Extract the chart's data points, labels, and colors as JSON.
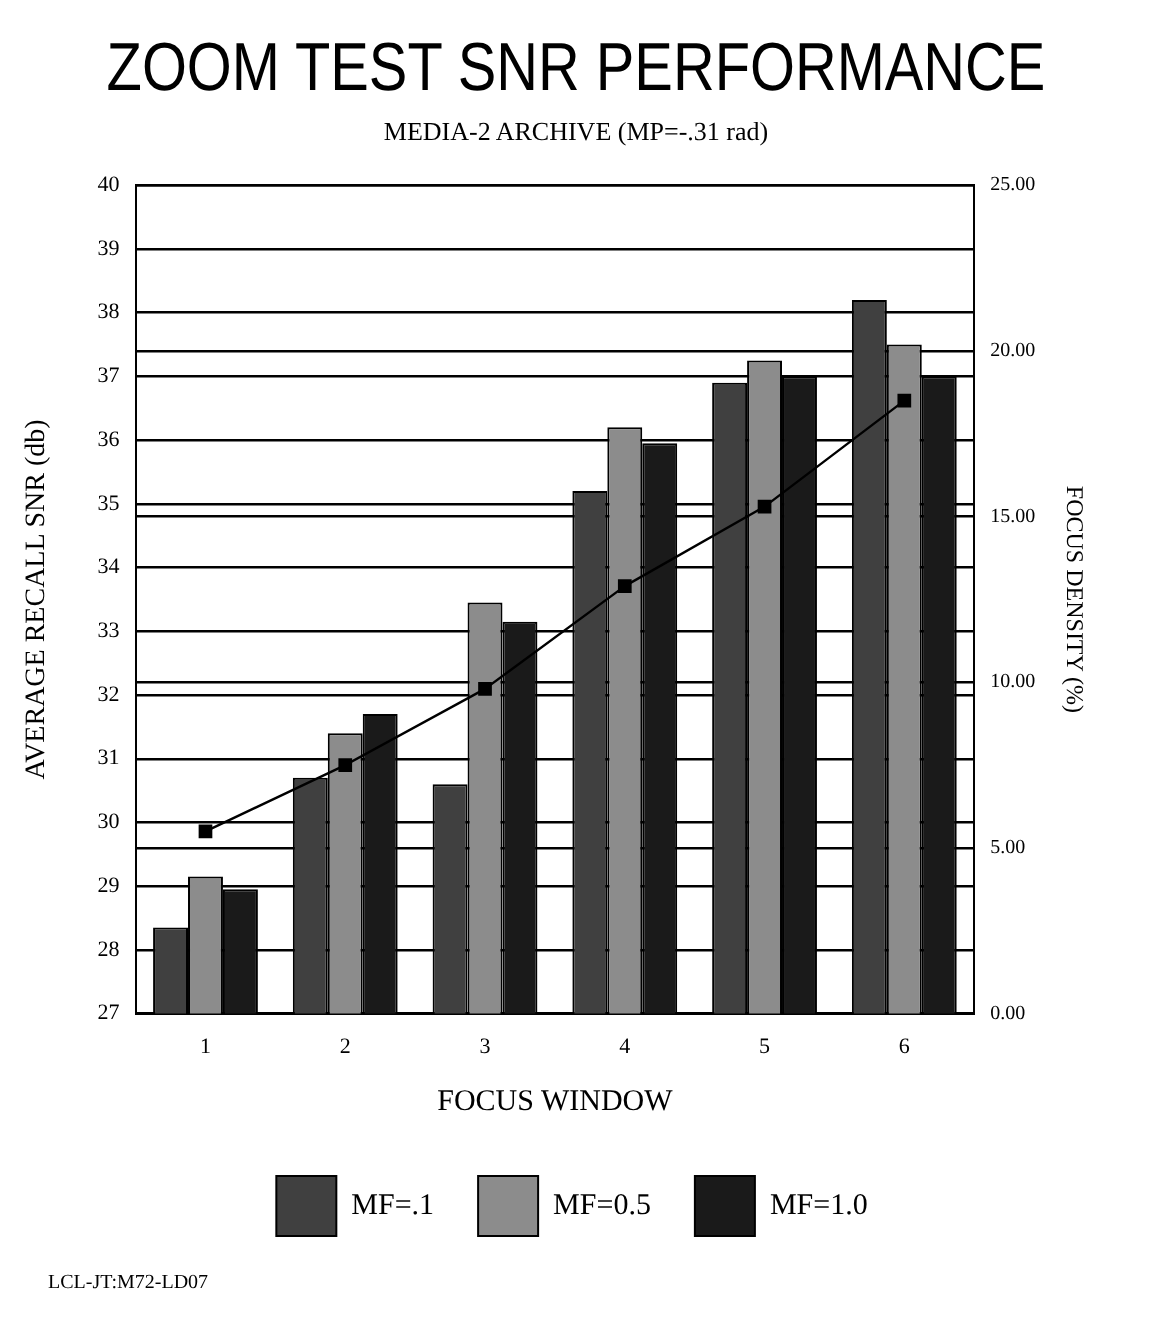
{
  "chart_data": {
    "type": "bar",
    "title": "ZOOM TEST SNR PERFORMANCE",
    "subtitle": "MEDIA-2 ARCHIVE (MP=-.31 rad)",
    "xlabel": "FOCUS WINDOW",
    "ylabel": "AVERAGE RECALL SNR (db)",
    "y2label": "FOCUS DENSITY (%)",
    "categories": [
      "1",
      "2",
      "3",
      "4",
      "5",
      "6"
    ],
    "series": [
      {
        "name": "MF=.1",
        "color": "#404040",
        "values": [
          28.35,
          30.7,
          30.6,
          35.2,
          36.9,
          38.2
        ]
      },
      {
        "name": "MF=0.5",
        "color": "#8c8c8c",
        "values": [
          29.15,
          31.4,
          33.45,
          36.2,
          37.25,
          37.5
        ]
      },
      {
        "name": "MF=1.0",
        "color": "#1a1a1a",
        "values": [
          28.95,
          31.7,
          33.15,
          35.95,
          37.0,
          37.0
        ]
      },
      {
        "type": "line",
        "axis": "y2",
        "color": "#000000",
        "marker": "square",
        "values": [
          5.5,
          7.5,
          9.8,
          12.9,
          15.3,
          18.5
        ]
      }
    ],
    "ylim": [
      27,
      40
    ],
    "yticks": [
      27,
      28,
      29,
      30,
      31,
      32,
      33,
      34,
      35,
      36,
      37,
      38,
      39,
      40
    ],
    "y2lim": [
      0,
      25
    ],
    "y2ticks": [
      {
        "value": 0,
        "label": "0.00"
      },
      {
        "value": 5,
        "label": "5.00"
      },
      {
        "value": 10,
        "label": "10.00"
      },
      {
        "value": 15,
        "label": "15.00"
      },
      {
        "value": 20,
        "label": "20.00"
      },
      {
        "value": 25,
        "label": "25.00"
      }
    ],
    "grid": "y",
    "legend": "bottom",
    "annotations": [
      "LCL-JT:M72-LD07"
    ]
  }
}
